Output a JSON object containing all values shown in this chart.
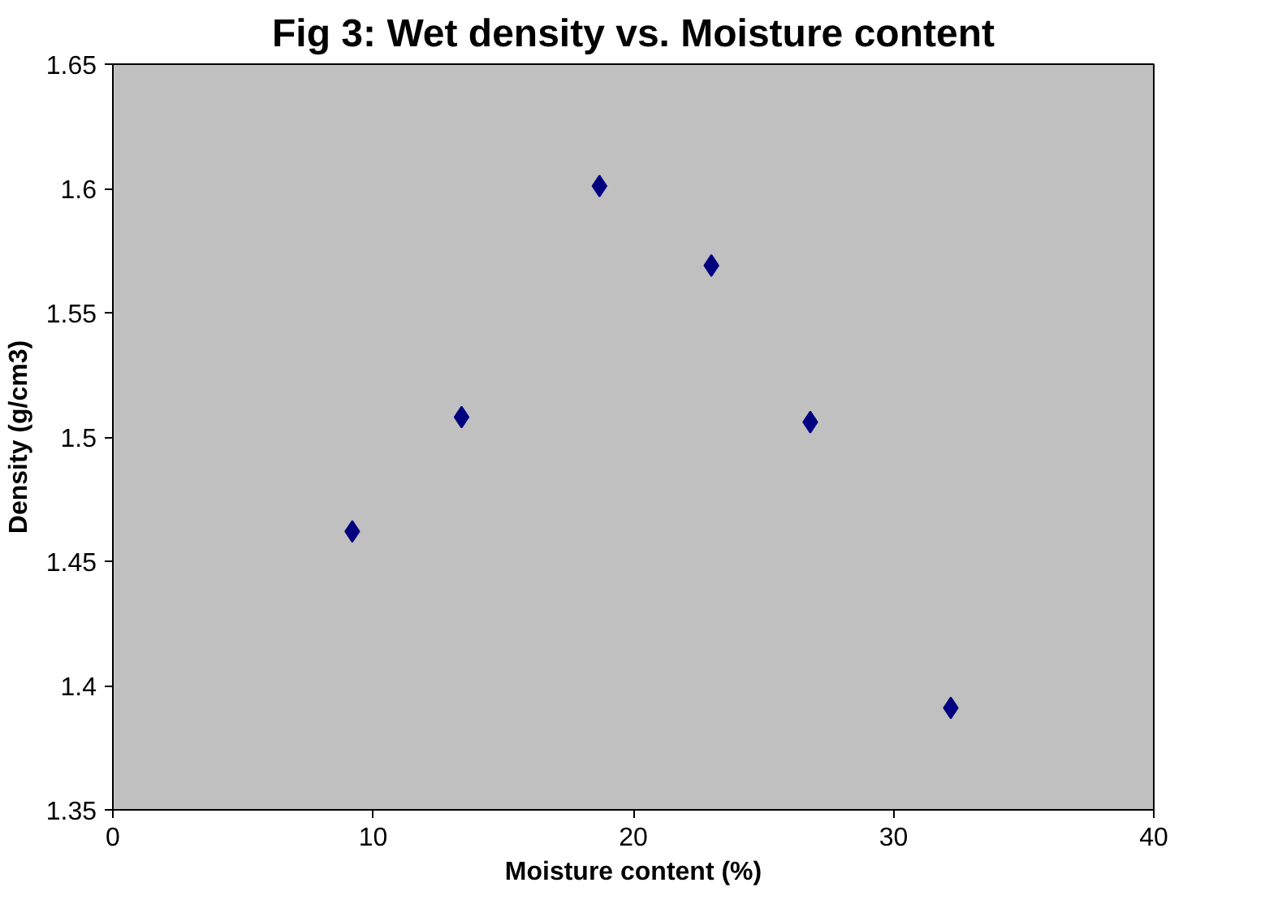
{
  "chart_data": {
    "type": "scatter",
    "title": "Fig 3: Wet density vs. Moisture content",
    "xlabel": "Moisture content (%)",
    "ylabel": "Density (g/cm3)",
    "x": [
      9.2,
      13.4,
      18.7,
      23.0,
      26.8,
      32.2
    ],
    "series": [
      {
        "color": "#000080",
        "values": [
          1.462,
          1.508,
          1.601,
          1.569,
          1.506,
          1.391
        ]
      }
    ],
    "xlim": [
      0,
      40
    ],
    "xticks": [
      0,
      10,
      20,
      30,
      40
    ],
    "ylim": [
      1.35,
      1.65
    ],
    "yticks": [
      1.35,
      1.4,
      1.45,
      1.5,
      1.55,
      1.6,
      1.65
    ],
    "marker": "diamond",
    "grid": false
  }
}
